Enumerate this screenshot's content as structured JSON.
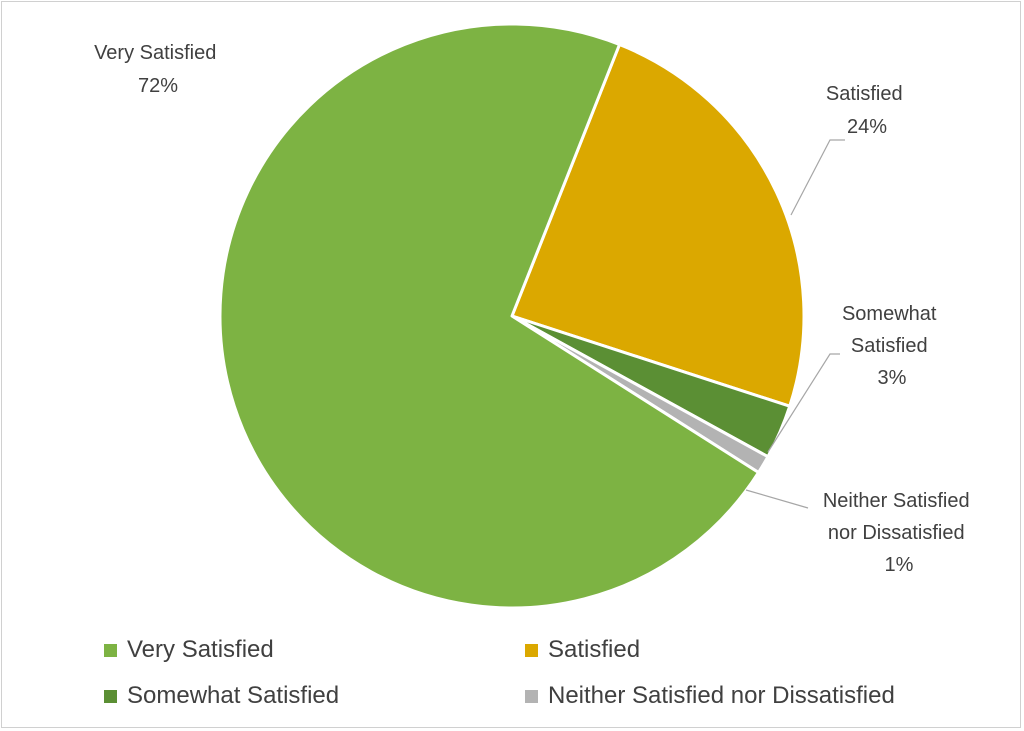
{
  "chart_data": {
    "type": "pie",
    "title": "",
    "series": [
      {
        "name": "Very Satisfied",
        "value": 72,
        "label": "72%",
        "color": "#7db343"
      },
      {
        "name": "Satisfied",
        "value": 24,
        "label": "24%",
        "color": "#dba800"
      },
      {
        "name": "Somewhat Satisfied",
        "value": 3,
        "label": "3%",
        "color": "#5b8f34"
      },
      {
        "name": "Neither Satisfied nor Dissatisfied",
        "value": 1,
        "label": "1%",
        "color": "#b3b3b3"
      }
    ],
    "legend_position": "bottom",
    "data_label_lines": {
      "very": [
        "Very Satisfied",
        "72%"
      ],
      "satisfied": [
        "Satisfied",
        "24%"
      ],
      "somewhat": [
        "Somewhat",
        "Satisfied",
        "3%"
      ],
      "neither": [
        "Neither Satisfied",
        "nor Dissatisfied",
        "1%"
      ]
    }
  }
}
